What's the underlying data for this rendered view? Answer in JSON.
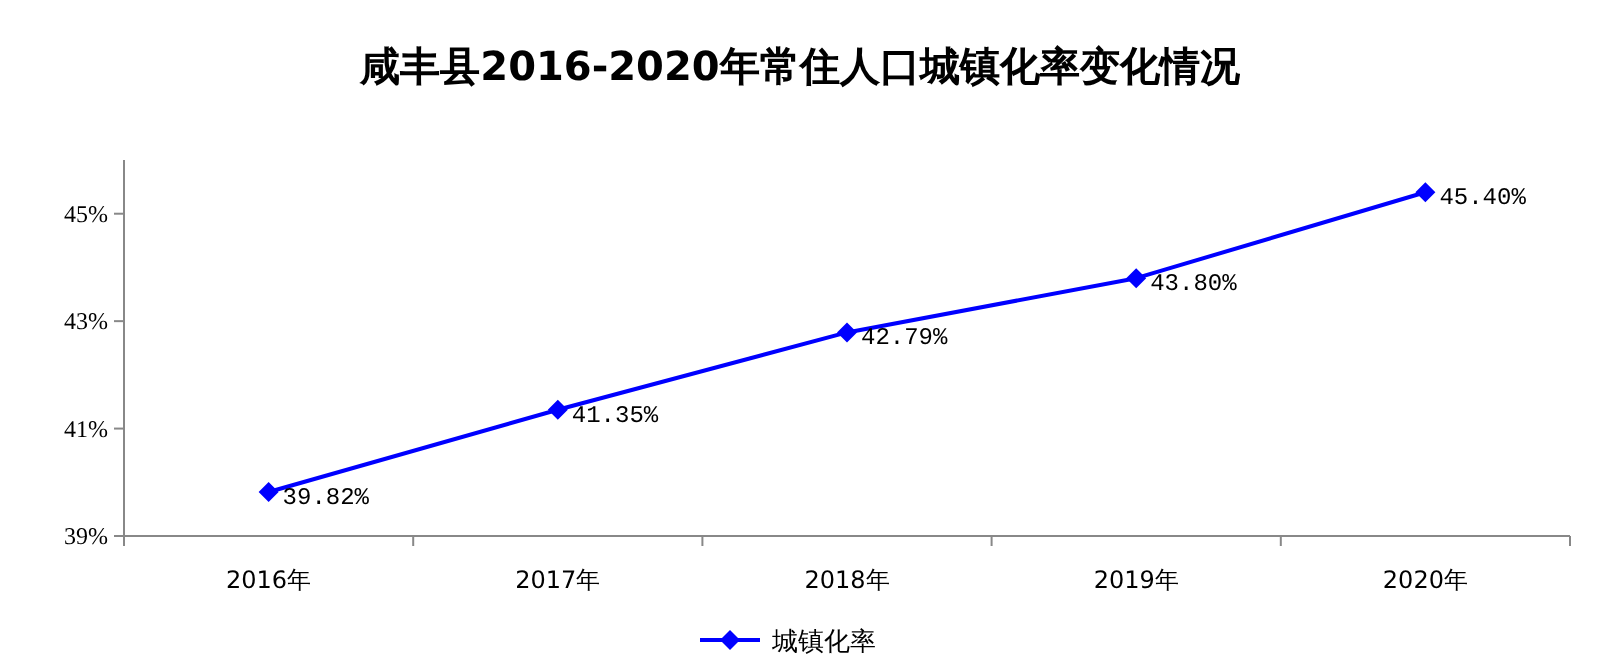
{
  "chart_data": {
    "type": "line",
    "title": "咸丰县2016-2020年常住人口城镇化率变化情况",
    "categories": [
      "2016年",
      "2017年",
      "2018年",
      "2019年",
      "2020年"
    ],
    "series": [
      {
        "name": "城镇化率",
        "color": "#0000ff",
        "values": [
          39.82,
          41.35,
          42.79,
          43.8,
          45.4
        ],
        "value_labels": [
          "39.82%",
          "41.35%",
          "42.79%",
          "43.80%",
          "45.40%"
        ]
      }
    ],
    "ylim": [
      39,
      46
    ],
    "yticks": [
      {
        "value": 39,
        "label": "39%"
      },
      {
        "value": 41,
        "label": "41%"
      },
      {
        "value": 43,
        "label": "43%"
      },
      {
        "value": 45,
        "label": "45%"
      }
    ],
    "marker": "diamond",
    "legend": "bottom",
    "grid": false
  }
}
